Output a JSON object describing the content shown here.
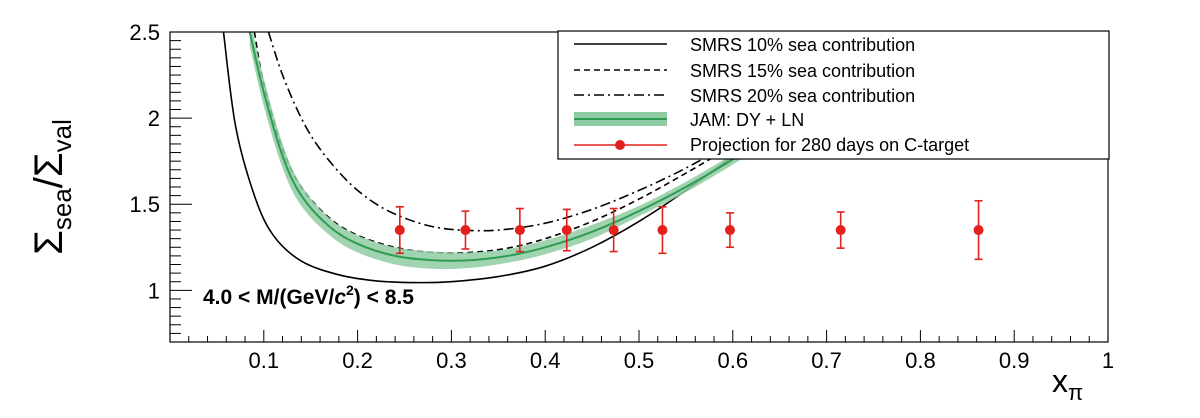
{
  "chart_data": {
    "type": "line",
    "xlabel_main": "x",
    "xlabel_sub": "π",
    "ylabel_main": "Σ",
    "ylabel_sub1": "sea",
    "ylabel_mid": "/Σ",
    "ylabel_sub2": "val",
    "xlim": [
      0,
      1
    ],
    "ylim": [
      0.7,
      2.5
    ],
    "x_ticks": [
      {
        "value": 0.1,
        "label": "0.1"
      },
      {
        "value": 0.2,
        "label": "0.2"
      },
      {
        "value": 0.3,
        "label": "0.3"
      },
      {
        "value": 0.4,
        "label": "0.4"
      },
      {
        "value": 0.5,
        "label": "0.5"
      },
      {
        "value": 0.6,
        "label": "0.6"
      },
      {
        "value": 0.7,
        "label": "0.7"
      },
      {
        "value": 0.8,
        "label": "0.8"
      },
      {
        "value": 0.9,
        "label": "0.9"
      },
      {
        "value": 1.0,
        "label": "1"
      }
    ],
    "y_ticks": [
      {
        "value": 1.0,
        "label": "1"
      },
      {
        "value": 1.5,
        "label": "1.5"
      },
      {
        "value": 2.0,
        "label": "2"
      },
      {
        "value": 2.5,
        "label": "2.5"
      }
    ],
    "annotation": {
      "text_pre": "4.0 < M/(GeV/",
      "text_c": "c",
      "text_sup": "2",
      "text_post": ") < 8.5"
    },
    "legend_position": "top-right",
    "series": [
      {
        "name": "SMRS 10% sea contribution",
        "style": "solid",
        "color": "#000000",
        "x": [
          0.057,
          0.07,
          0.09,
          0.11,
          0.14,
          0.18,
          0.22,
          0.26,
          0.3,
          0.35,
          0.4,
          0.45,
          0.5,
          0.55,
          0.6,
          0.65
        ],
        "y": [
          2.5,
          1.95,
          1.55,
          1.32,
          1.17,
          1.09,
          1.055,
          1.045,
          1.05,
          1.08,
          1.14,
          1.25,
          1.4,
          1.58,
          1.78,
          2.0
        ]
      },
      {
        "name": "SMRS 15% sea contribution",
        "style": "dashed",
        "color": "#000000",
        "x": [
          0.09,
          0.1,
          0.12,
          0.14,
          0.17,
          0.2,
          0.24,
          0.28,
          0.32,
          0.36,
          0.4,
          0.45,
          0.5,
          0.55,
          0.6,
          0.65
        ],
        "y": [
          2.5,
          2.2,
          1.82,
          1.6,
          1.42,
          1.32,
          1.25,
          1.22,
          1.22,
          1.245,
          1.3,
          1.4,
          1.53,
          1.68,
          1.84,
          2.0
        ]
      },
      {
        "name": "SMRS 20% sea contribution",
        "style": "dashdot",
        "color": "#000000",
        "x": [
          0.105,
          0.12,
          0.14,
          0.16,
          0.19,
          0.22,
          0.25,
          0.28,
          0.31,
          0.35,
          0.4,
          0.45,
          0.5,
          0.55,
          0.6,
          0.65
        ],
        "y": [
          2.5,
          2.25,
          2.0,
          1.82,
          1.63,
          1.5,
          1.42,
          1.37,
          1.35,
          1.35,
          1.39,
          1.47,
          1.58,
          1.71,
          1.86,
          2.0
        ]
      },
      {
        "name": "JAM: DY + LN",
        "style": "band",
        "color": "#2e9c52",
        "band_color": "#8fcca3",
        "x": [
          0.085,
          0.1,
          0.12,
          0.14,
          0.17,
          0.2,
          0.24,
          0.28,
          0.32,
          0.36,
          0.4,
          0.45,
          0.5,
          0.55,
          0.6,
          0.65
        ],
        "y": [
          2.5,
          2.15,
          1.78,
          1.55,
          1.37,
          1.27,
          1.2,
          1.175,
          1.175,
          1.2,
          1.25,
          1.34,
          1.46,
          1.6,
          1.76,
          1.93
        ],
        "y_low": [
          2.42,
          2.07,
          1.71,
          1.49,
          1.32,
          1.22,
          1.15,
          1.125,
          1.13,
          1.16,
          1.21,
          1.3,
          1.43,
          1.57,
          1.73,
          1.9
        ],
        "y_high": [
          2.58,
          2.23,
          1.85,
          1.61,
          1.42,
          1.32,
          1.25,
          1.225,
          1.22,
          1.24,
          1.29,
          1.38,
          1.49,
          1.63,
          1.79,
          1.96
        ]
      },
      {
        "name": "Projection for 280 days on C-target",
        "style": "points",
        "color": "#e3211c",
        "x": [
          0.245,
          0.315,
          0.373,
          0.423,
          0.473,
          0.525,
          0.597,
          0.715,
          0.862
        ],
        "y": [
          1.35,
          1.35,
          1.35,
          1.35,
          1.35,
          1.35,
          1.35,
          1.35,
          1.35
        ],
        "yerr": [
          0.135,
          0.11,
          0.125,
          0.12,
          0.125,
          0.135,
          0.1,
          0.105,
          0.17
        ]
      }
    ]
  }
}
